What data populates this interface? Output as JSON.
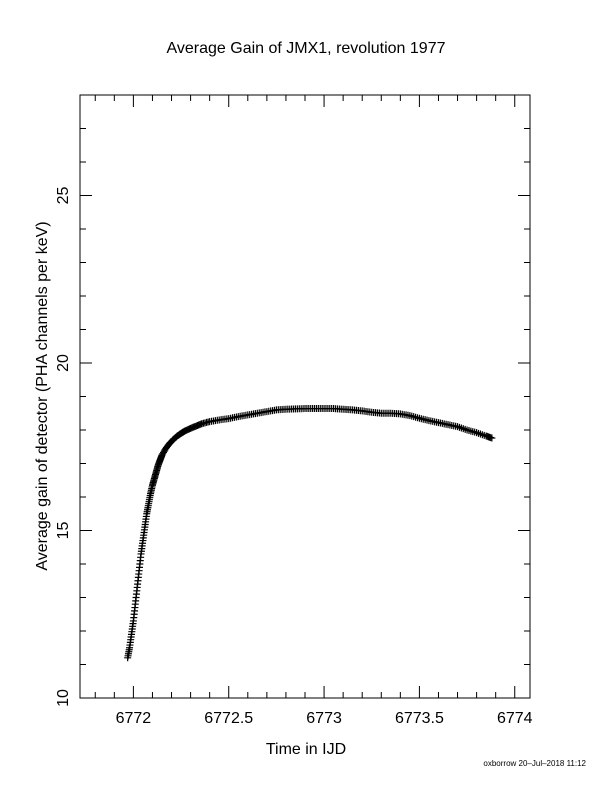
{
  "chart_data": {
    "type": "scatter",
    "title": "Average Gain of JMX1, revolution 1977",
    "xlabel": "Time in IJD",
    "ylabel": "Average gain of detector (PHA channels per keV)",
    "xlim": [
      6771.72,
      6774.08
    ],
    "ylim": [
      10,
      28
    ],
    "x_ticks": [
      6772,
      6772.5,
      6773,
      6773.5,
      6774
    ],
    "x_tick_labels": [
      "6772",
      "6772.5",
      "6773",
      "6773.5",
      "6774"
    ],
    "y_ticks": [
      10,
      15,
      20,
      25
    ],
    "y_tick_labels": [
      "10",
      "15",
      "20",
      "25"
    ],
    "x_minor_step": 0.1,
    "y_minor_step": 1,
    "grid": false,
    "marker": "plus",
    "color": "#000000",
    "series": [
      {
        "x": [
          6771.97,
          6771.98,
          6771.99,
          6772.0,
          6772.01,
          6772.02,
          6772.03,
          6772.04,
          6772.05,
          6772.06,
          6772.07,
          6772.08,
          6772.09,
          6772.1,
          6772.11,
          6772.12,
          6772.13,
          6772.14,
          6772.15,
          6772.17,
          6772.19,
          6772.21,
          6772.23,
          6772.25,
          6772.27,
          6772.3,
          6772.33,
          6772.36,
          6772.4,
          6772.45,
          6772.5,
          6772.55,
          6772.6,
          6772.65,
          6772.7,
          6772.75,
          6772.8,
          6772.85,
          6772.9,
          6772.95,
          6773.0,
          6773.05,
          6773.1,
          6773.15,
          6773.2,
          6773.25,
          6773.3,
          6773.35,
          6773.4,
          6773.45,
          6773.5,
          6773.55,
          6773.6,
          6773.65,
          6773.7,
          6773.75,
          6773.8,
          6773.85,
          6773.88
        ],
        "y": [
          11.2,
          11.5,
          11.9,
          12.3,
          12.8,
          13.3,
          13.8,
          14.3,
          14.7,
          15.1,
          15.5,
          15.8,
          16.1,
          16.35,
          16.55,
          16.75,
          16.95,
          17.1,
          17.25,
          17.45,
          17.6,
          17.72,
          17.82,
          17.9,
          17.97,
          18.05,
          18.12,
          18.19,
          18.25,
          18.3,
          18.34,
          18.4,
          18.45,
          18.5,
          18.55,
          18.6,
          18.62,
          18.63,
          18.64,
          18.64,
          18.64,
          18.64,
          18.62,
          18.6,
          18.57,
          18.53,
          18.5,
          18.5,
          18.48,
          18.43,
          18.35,
          18.28,
          18.22,
          18.16,
          18.1,
          18.0,
          17.92,
          17.82,
          17.76
        ]
      }
    ]
  },
  "footer": "oxborrow 20–Jul–2018 11:12"
}
